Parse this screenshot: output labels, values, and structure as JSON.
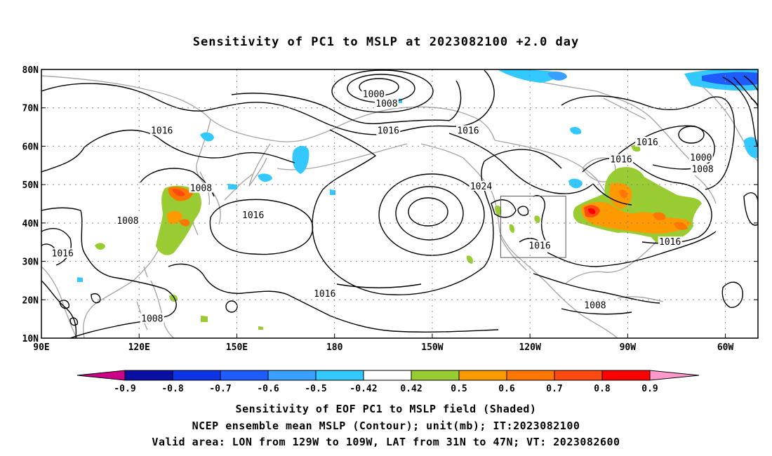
{
  "title": "Sensitivity of PC1 to MSLP at 2023082100 +2.0 day",
  "axes": {
    "lat_labels": [
      "80N",
      "70N",
      "60N",
      "50N",
      "40N",
      "30N",
      "20N",
      "10N"
    ],
    "lon_labels": [
      "90E",
      "120E",
      "150E",
      "180",
      "150W",
      "120W",
      "90W",
      "60W"
    ]
  },
  "contour_labels": [
    {
      "text": "1000",
      "lon": 192,
      "lat": 73.5
    },
    {
      "text": "1008",
      "lon": 196,
      "lat": 71
    },
    {
      "text": "1016",
      "lon": 127,
      "lat": 64
    },
    {
      "text": "1016",
      "lon": 196.5,
      "lat": 64
    },
    {
      "text": "1016",
      "lon": 221,
      "lat": 64
    },
    {
      "text": "1016",
      "lon": 276,
      "lat": 61
    },
    {
      "text": "1016",
      "lon": 268,
      "lat": 56.5
    },
    {
      "text": "1000",
      "lon": 292.5,
      "lat": 57
    },
    {
      "text": "1008",
      "lon": 293,
      "lat": 54
    },
    {
      "text": "1024",
      "lon": 225,
      "lat": 49.5
    },
    {
      "text": "1008",
      "lon": 139,
      "lat": 49
    },
    {
      "text": "1016",
      "lon": 155,
      "lat": 42
    },
    {
      "text": "1008",
      "lon": 116.5,
      "lat": 40.5
    },
    {
      "text": "1016",
      "lon": 96.5,
      "lat": 32
    },
    {
      "text": "1016",
      "lon": 243,
      "lat": 34
    },
    {
      "text": "1016",
      "lon": 283,
      "lat": 35
    },
    {
      "text": "1016",
      "lon": 177,
      "lat": 21.5
    },
    {
      "text": "1008",
      "lon": 260,
      "lat": 18.5
    },
    {
      "text": "1008",
      "lon": 124,
      "lat": 15
    }
  ],
  "colorbar": {
    "labels": [
      "-0.9",
      "-0.8",
      "-0.7",
      "-0.6",
      "-0.5",
      "-0.42",
      "0.42",
      "0.5",
      "0.6",
      "0.7",
      "0.8",
      "0.9"
    ],
    "colors": [
      "#0a0fa3",
      "#0d35e6",
      "#1e5cff",
      "#3aa0ff",
      "#33c8ff",
      "#ffffff",
      "#99cc33",
      "#ff9900",
      "#ff7700",
      "#ff4a11",
      "#ff0000"
    ],
    "low_extension_color": "#cc0088",
    "high_extension_color": "#ff99cc"
  },
  "captions": [
    "Sensitivity of EOF PC1 to MSLP field (Shaded)",
    "NCEP ensemble mean MSLP (Contour); unit(mb); IT:2023082100",
    "Valid area: LON from 129W to 109W, LAT from 31N to 47N; VT: 2023082600"
  ],
  "valid_box": {
    "lon_min": 231,
    "lon_max": 251,
    "lat_min": 31,
    "lat_max": 47
  },
  "map_extent": {
    "lon_min": 90,
    "lon_max": 310,
    "lat_min": 10,
    "lat_max": 80
  }
}
